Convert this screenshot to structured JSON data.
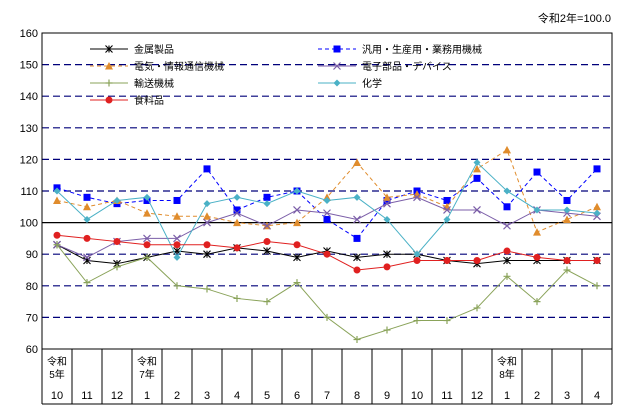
{
  "note": "令和2年=100.0",
  "chart_data": {
    "type": "line",
    "categories": [
      "10",
      "11",
      "12",
      "1",
      "2",
      "3",
      "4",
      "5",
      "6",
      "7",
      "8",
      "9",
      "10",
      "11",
      "12",
      "1",
      "2",
      "3",
      "4"
    ],
    "era_labels": [
      {
        "index": 0,
        "lines": [
          "令和",
          "5年"
        ]
      },
      {
        "index": 3,
        "lines": [
          "令和",
          "7年"
        ]
      },
      {
        "index": 15,
        "lines": [
          "令和",
          "8年"
        ]
      }
    ],
    "ylim": [
      60,
      160
    ],
    "yticks": [
      60,
      70,
      80,
      90,
      100,
      110,
      120,
      130,
      140,
      150,
      160
    ],
    "series": [
      {
        "name": "金属製品",
        "color": "#000000",
        "marker": "asterisk",
        "dash": "solid",
        "values": [
          93,
          88,
          87,
          89,
          91,
          90,
          92,
          91,
          89,
          91,
          89,
          90,
          90,
          88,
          87,
          88,
          88,
          88,
          88
        ]
      },
      {
        "name": "汎用・生産用・業務用機械",
        "color": "#0000ff",
        "marker": "square",
        "dash": "dashed",
        "values": [
          111,
          108,
          106,
          107,
          107,
          117,
          104,
          108,
          110,
          101,
          95,
          107,
          110,
          107,
          114,
          105,
          116,
          107,
          117
        ]
      },
      {
        "name": "電気・情報通信機械",
        "color": "#e08c2c",
        "marker": "triangle",
        "dash": "dashed",
        "values": [
          107,
          105,
          107,
          103,
          102,
          102,
          100,
          99,
          100,
          108,
          119,
          108,
          109,
          105,
          117,
          123,
          97,
          101,
          105
        ]
      },
      {
        "name": "電子部品・デバイス",
        "color": "#7b5ea8",
        "marker": "x",
        "dash": "solid",
        "values": [
          93,
          89,
          94,
          95,
          95,
          100,
          103,
          99,
          104,
          103,
          101,
          106,
          108,
          104,
          104,
          99,
          104,
          103,
          102
        ]
      },
      {
        "name": "輸送機械",
        "color": "#8aa35a",
        "marker": "plus",
        "dash": "solid",
        "values": [
          93,
          81,
          86,
          89,
          80,
          79,
          76,
          75,
          81,
          70,
          63,
          66,
          69,
          69,
          73,
          83,
          75,
          85,
          80
        ]
      },
      {
        "name": "化学",
        "color": "#4ab1c6",
        "marker": "diamond",
        "dash": "solid",
        "values": [
          110,
          101,
          107,
          108,
          89,
          106,
          108,
          106,
          110,
          107,
          108,
          101,
          90,
          101,
          119,
          110,
          104,
          104,
          103
        ]
      },
      {
        "name": "食料品",
        "color": "#e02020",
        "marker": "circle",
        "dash": "solid",
        "values": [
          96,
          95,
          94,
          93,
          93,
          93,
          92,
          94,
          93,
          90,
          85,
          86,
          88,
          88,
          88,
          91,
          89,
          88,
          88
        ]
      }
    ],
    "reference_line": 100
  }
}
